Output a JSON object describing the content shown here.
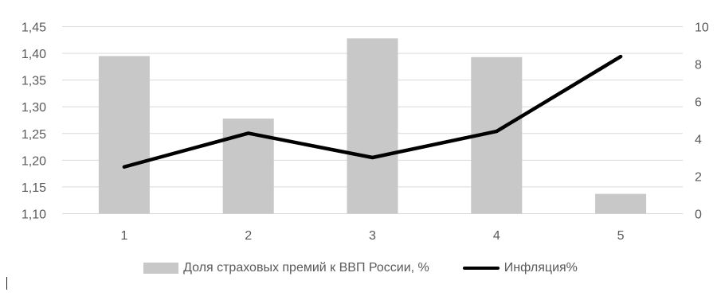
{
  "chart_data": {
    "type": "bar",
    "categories": [
      "1",
      "2",
      "3",
      "4",
      "5"
    ],
    "series": [
      {
        "name": "Доля страховых премий к ВВП России, %",
        "type": "bar",
        "axis": "left",
        "values": [
          1.395,
          1.278,
          1.428,
          1.393,
          1.137
        ],
        "color": "#c8c8c8"
      },
      {
        "name": "Инфляция%",
        "type": "line",
        "axis": "right",
        "values": [
          2.5,
          4.3,
          3.0,
          4.4,
          8.4
        ],
        "color": "#000000"
      }
    ],
    "y_left": {
      "lim": [
        1.1,
        1.45
      ],
      "ticks": [
        "1,10",
        "1,15",
        "1,20",
        "1,25",
        "1,30",
        "1,35",
        "1,40",
        "1,45"
      ]
    },
    "y_right": {
      "lim": [
        0,
        10
      ],
      "ticks": [
        "0",
        "2",
        "4",
        "6",
        "8",
        "10"
      ]
    },
    "grid": true,
    "legend_position": "bottom",
    "colors": {
      "grid": "#d9d9d9",
      "text": "#595959"
    }
  }
}
